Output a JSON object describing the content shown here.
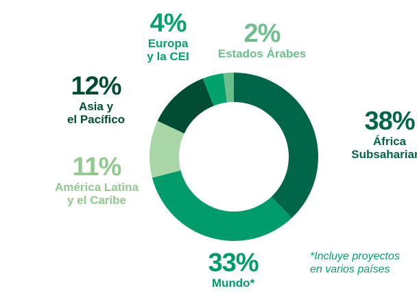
{
  "chart_data": {
    "type": "donut",
    "categories": [
      "África\nSubsahariana",
      "Mundo*",
      "América Latina\ny el Caribe",
      "Asia y\nel Pacífico",
      "Europa\ny la CEI",
      "Estados Árabes"
    ],
    "values": [
      38,
      33,
      11,
      12,
      4,
      2
    ],
    "value_labels": [
      "38%",
      "33%",
      "11%",
      "12%",
      "4%",
      "2%"
    ],
    "colors": [
      "#00664a",
      "#009b6b",
      "#a9d6a6",
      "#004d33",
      "#00a36c",
      "#6cbf8c"
    ],
    "note": "*Incluye proyectos\nen varios países"
  }
}
